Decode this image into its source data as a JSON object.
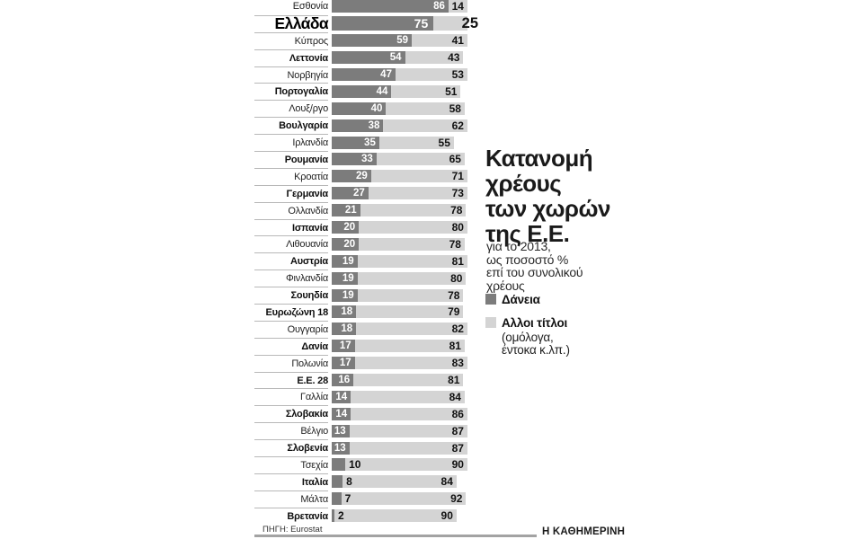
{
  "colors": {
    "loans": "#7c7c7c",
    "other": "#d4d4d4"
  },
  "side": {
    "title": "Κατανομή\nχρέους\nτων χωρών\nτης Ε.Ε.",
    "subtitle": "για το 2013,\nως ποσοστό %\nεπί του συνολικού\nχρέους"
  },
  "legend": {
    "loans": "Δάνεια",
    "other": "Αλλοι τίτλοι",
    "other_note": "(ομόλογα,\nέντοκα κ.λπ.)"
  },
  "footer": {
    "source": "ΠΗΓΗ: Eurostat",
    "brand": "Η ΚΑΘΗΜΕΡΙΝΗ"
  },
  "chart_data": {
    "type": "bar",
    "orientation": "horizontal",
    "stacked": true,
    "title": "Κατανομή χρέους των χωρών της Ε.Ε.",
    "subtitle": "για το 2013, ως ποσοστό % επί του συνολικού χρέους",
    "xlim": [
      0,
      100
    ],
    "unit": "%",
    "series_names": [
      "Δάνεια",
      "Αλλοι τίτλοι (ομόλογα, έντοκα κ.λπ.)"
    ],
    "rows": [
      {
        "label": "Εσθονία",
        "loans": 86,
        "other": 14,
        "bold": false,
        "highlight": false
      },
      {
        "label": "Ελλάδα",
        "loans": 75,
        "other": 25,
        "bold": true,
        "highlight": true
      },
      {
        "label": "Κύπρος",
        "loans": 59,
        "other": 41,
        "bold": false,
        "highlight": false
      },
      {
        "label": "Λεττονία",
        "loans": 54,
        "other": 43,
        "bold": true,
        "highlight": false
      },
      {
        "label": "Νορβηγία",
        "loans": 47,
        "other": 53,
        "bold": false,
        "highlight": false
      },
      {
        "label": "Πορτογαλία",
        "loans": 44,
        "other": 51,
        "bold": true,
        "highlight": false
      },
      {
        "label": "Λουξ/ργο",
        "loans": 40,
        "other": 58,
        "bold": false,
        "highlight": false
      },
      {
        "label": "Βουλγαρία",
        "loans": 38,
        "other": 62,
        "bold": true,
        "highlight": false
      },
      {
        "label": "Ιρλανδία",
        "loans": 35,
        "other": 55,
        "bold": false,
        "highlight": false
      },
      {
        "label": "Ρουμανία",
        "loans": 33,
        "other": 65,
        "bold": true,
        "highlight": false
      },
      {
        "label": "Κροατία",
        "loans": 29,
        "other": 71,
        "bold": false,
        "highlight": false
      },
      {
        "label": "Γερμανία",
        "loans": 27,
        "other": 73,
        "bold": true,
        "highlight": false
      },
      {
        "label": "Ολλανδία",
        "loans": 21,
        "other": 78,
        "bold": false,
        "highlight": false
      },
      {
        "label": "Ισπανία",
        "loans": 20,
        "other": 80,
        "bold": true,
        "highlight": false
      },
      {
        "label": "Λιθουανία",
        "loans": 20,
        "other": 78,
        "bold": false,
        "highlight": false
      },
      {
        "label": "Αυστρία",
        "loans": 19,
        "other": 81,
        "bold": true,
        "highlight": false
      },
      {
        "label": "Φινλανδία",
        "loans": 19,
        "other": 80,
        "bold": false,
        "highlight": false
      },
      {
        "label": "Σουηδία",
        "loans": 19,
        "other": 78,
        "bold": true,
        "highlight": false
      },
      {
        "label": "Ευρωζώνη 18",
        "loans": 18,
        "other": 79,
        "bold": true,
        "highlight": false
      },
      {
        "label": "Ουγγαρία",
        "loans": 18,
        "other": 82,
        "bold": false,
        "highlight": false
      },
      {
        "label": "Δανία",
        "loans": 17,
        "other": 81,
        "bold": true,
        "highlight": false
      },
      {
        "label": "Πολωνία",
        "loans": 17,
        "other": 83,
        "bold": false,
        "highlight": false
      },
      {
        "label": "Ε.Ε. 28",
        "loans": 16,
        "other": 81,
        "bold": true,
        "highlight": false
      },
      {
        "label": "Γαλλία",
        "loans": 14,
        "other": 84,
        "bold": false,
        "highlight": false
      },
      {
        "label": "Σλοβακία",
        "loans": 14,
        "other": 86,
        "bold": true,
        "highlight": false
      },
      {
        "label": "Βέλγιο",
        "loans": 13,
        "other": 87,
        "bold": false,
        "highlight": false
      },
      {
        "label": "Σλοβενία",
        "loans": 13,
        "other": 87,
        "bold": true,
        "highlight": false
      },
      {
        "label": "Τσεχία",
        "loans": 10,
        "other": 90,
        "bold": false,
        "highlight": false
      },
      {
        "label": "Ιταλία",
        "loans": 8,
        "other": 84,
        "bold": true,
        "highlight": false
      },
      {
        "label": "Μάλτα",
        "loans": 7,
        "other": 92,
        "bold": false,
        "highlight": false
      },
      {
        "label": "Βρετανία",
        "loans": 2,
        "other": 90,
        "bold": true,
        "highlight": false
      }
    ]
  }
}
